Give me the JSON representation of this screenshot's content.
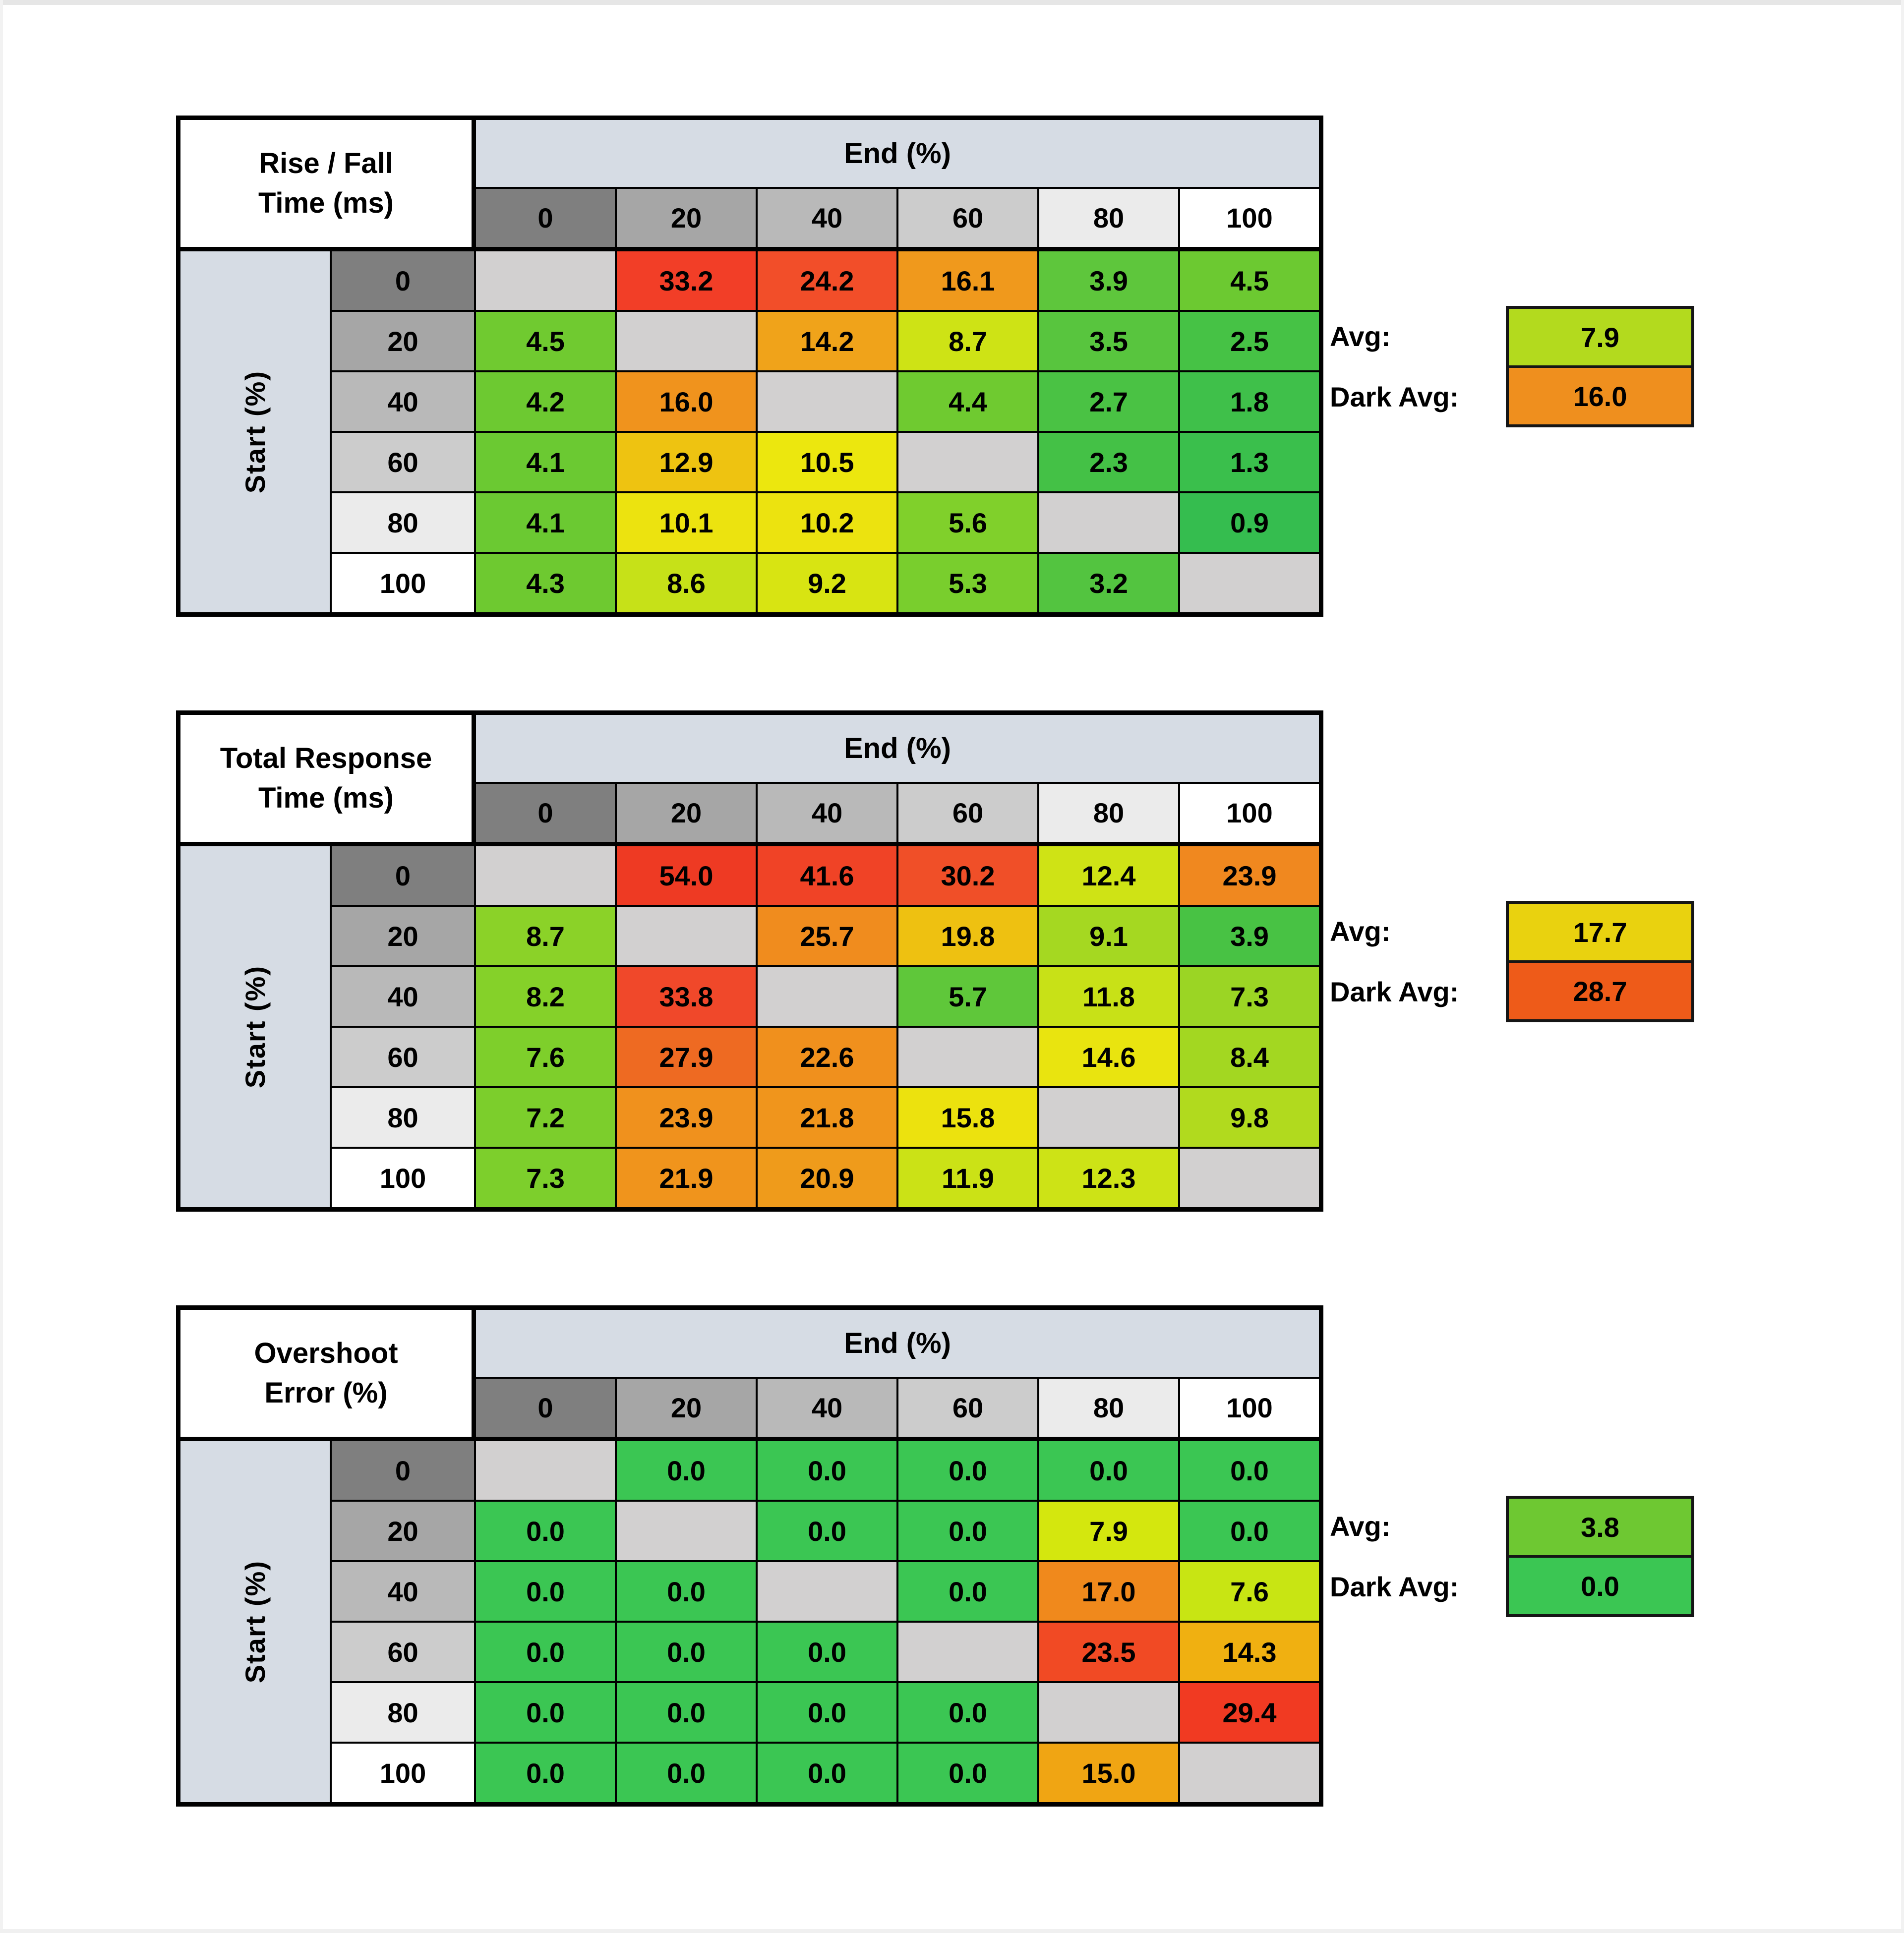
{
  "ui": {
    "end_label": "End (%)",
    "start_label": "Start (%)",
    "avg_label": "Avg:",
    "dark_avg_label": "Dark Avg:",
    "col_headers": [
      "0",
      "20",
      "40",
      "60",
      "80",
      "100"
    ],
    "row_headers": [
      "0",
      "20",
      "40",
      "60",
      "80",
      "100"
    ],
    "header_shades": [
      "#7f7f7f",
      "#a6a6a6",
      "#b9b9b9",
      "#cccccc",
      "#ebebeb",
      "#ffffff"
    ],
    "banner_color": "#d6dce4",
    "start_strip_color": "#d6dce4",
    "diagonal_color": "#d2d0d0",
    "border_color": "#000000"
  },
  "chart_data": [
    {
      "type": "heatmap",
      "title_line1": "Rise / Fall",
      "title_line2": "Time (ms)",
      "xlabel": "End (%)",
      "ylabel": "Start (%)",
      "x_categories": [
        0,
        20,
        40,
        60,
        80,
        100
      ],
      "y_categories": [
        0,
        20,
        40,
        60,
        80,
        100
      ],
      "values": [
        [
          null,
          33.2,
          24.2,
          16.1,
          3.9,
          4.5
        ],
        [
          4.5,
          null,
          14.2,
          8.7,
          3.5,
          2.5
        ],
        [
          4.2,
          16.0,
          null,
          4.4,
          2.7,
          1.8
        ],
        [
          4.1,
          12.9,
          10.5,
          null,
          2.3,
          1.3
        ],
        [
          4.1,
          10.1,
          10.2,
          5.6,
          null,
          0.9
        ],
        [
          4.3,
          8.6,
          9.2,
          5.3,
          3.2,
          null
        ]
      ],
      "cell_colors": [
        [
          null,
          "#f23e27",
          "#f24e29",
          "#f0991c",
          "#5ec63c",
          "#6cc931"
        ],
        [
          "#70ca30",
          null,
          "#f0a31a",
          "#cee315",
          "#58c53e",
          "#46c245"
        ],
        [
          "#6dc931",
          "#f0931d",
          null,
          "#6fca30",
          "#4ac244",
          "#3fc04a"
        ],
        [
          "#6bc932",
          "#eec311",
          "#ece70e",
          null,
          "#44c146",
          "#3abf4c"
        ],
        [
          "#6bc932",
          "#ece30f",
          "#ece30f",
          "#80d02b",
          null,
          "#35bd4f"
        ],
        [
          "#6ec930",
          "#c6e118",
          "#d8e412",
          "#79ce2d",
          "#53c440",
          null
        ]
      ],
      "avg_value": "7.9",
      "avg_color": "#b3da1e",
      "dark_avg_value": "16.0",
      "dark_avg_color": "#ef8f1e"
    },
    {
      "type": "heatmap",
      "title_line1": "Total Response",
      "title_line2": "Time (ms)",
      "xlabel": "End (%)",
      "ylabel": "Start (%)",
      "x_categories": [
        0,
        20,
        40,
        60,
        80,
        100
      ],
      "y_categories": [
        0,
        20,
        40,
        60,
        80,
        100
      ],
      "values": [
        [
          null,
          54.0,
          41.6,
          30.2,
          12.4,
          23.9
        ],
        [
          8.7,
          null,
          25.7,
          19.8,
          9.1,
          3.9
        ],
        [
          8.2,
          33.8,
          null,
          5.7,
          11.8,
          7.3
        ],
        [
          7.6,
          27.9,
          22.6,
          null,
          14.6,
          8.4
        ],
        [
          7.2,
          23.9,
          21.8,
          15.8,
          null,
          9.8
        ],
        [
          7.3,
          21.9,
          20.9,
          11.9,
          12.3,
          null
        ]
      ],
      "cell_colors": [
        [
          null,
          "#ee3a23",
          "#f04326",
          "#f04f28",
          "#cfe315",
          "#f0881f"
        ],
        [
          "#8bd228",
          null,
          "#f08c1e",
          "#eec111",
          "#a5d821",
          "#48c244"
        ],
        [
          "#85d129",
          "#f0482a",
          null,
          "#5fc73a",
          "#c8e117",
          "#9bd524"
        ],
        [
          "#7ecf2b",
          "#ee6a22",
          "#f0901d",
          null,
          "#e9e40f",
          "#a3d721"
        ],
        [
          "#7cce2c",
          "#f0911d",
          "#f0951c",
          "#ece20e",
          null,
          "#b1da1e"
        ],
        [
          "#7dcf2c",
          "#f0941c",
          "#ef9b1b",
          "#cbe216",
          "#cde316",
          null
        ]
      ],
      "avg_value": "17.7",
      "avg_color": "#e9d20f",
      "dark_avg_value": "28.7",
      "dark_avg_color": "#ee5b19"
    },
    {
      "type": "heatmap",
      "title_line1": "Overshoot",
      "title_line2": "Error (%)",
      "xlabel": "End (%)",
      "ylabel": "Start (%)",
      "x_categories": [
        0,
        20,
        40,
        60,
        80,
        100
      ],
      "y_categories": [
        0,
        20,
        40,
        60,
        80,
        100
      ],
      "values": [
        [
          null,
          0.0,
          0.0,
          0.0,
          0.0,
          0.0
        ],
        [
          0.0,
          null,
          0.0,
          0.0,
          7.9,
          0.0
        ],
        [
          0.0,
          0.0,
          null,
          0.0,
          17.0,
          7.6
        ],
        [
          0.0,
          0.0,
          0.0,
          null,
          23.5,
          14.3
        ],
        [
          0.0,
          0.0,
          0.0,
          0.0,
          null,
          29.4
        ],
        [
          0.0,
          0.0,
          0.0,
          0.0,
          15.0,
          null
        ]
      ],
      "cell_colors": [
        [
          null,
          "#3bc653",
          "#3bc653",
          "#3bc653",
          "#3bc653",
          "#3bc653"
        ],
        [
          "#3bc653",
          null,
          "#3bc653",
          "#3bc653",
          "#d4e70e",
          "#3bc653"
        ],
        [
          "#3bc653",
          "#3bc653",
          null,
          "#3bc653",
          "#f0891c",
          "#c8e513"
        ],
        [
          "#3bc653",
          "#3bc653",
          "#3bc653",
          null,
          "#f14a24",
          "#f0b011"
        ],
        [
          "#3bc653",
          "#3bc653",
          "#3bc653",
          "#3bc653",
          null,
          "#f13a22"
        ],
        [
          "#3bc653",
          "#3bc653",
          "#3bc653",
          "#3bc653",
          "#f0a513",
          null
        ]
      ],
      "avg_value": "3.8",
      "avg_color": "#6ec832",
      "dark_avg_value": "0.0",
      "dark_avg_color": "#3bc653"
    }
  ]
}
